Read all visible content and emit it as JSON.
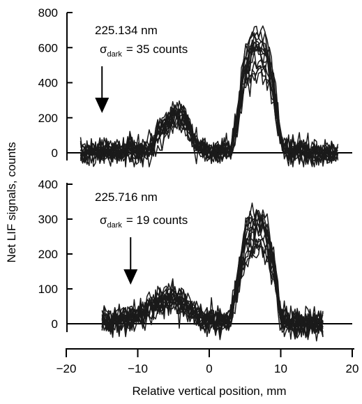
{
  "chart_data": [
    {
      "type": "line",
      "panel": "top",
      "annotation": {
        "wavelength": "225.134 nm",
        "sigma_symbol": "σ",
        "sigma_sub": "dark",
        "sigma_value": "= 35 counts"
      },
      "arrow_x": -15,
      "ylim": [
        -80,
        800
      ],
      "yticks": [
        0,
        200,
        400,
        600,
        800
      ],
      "ytick_labels": [
        "0",
        "200",
        "400",
        "600",
        "800"
      ],
      "xlim": [
        -18,
        18
      ],
      "series_count": 15,
      "noise_sigma": 35,
      "profile": [
        {
          "x": -18,
          "y": 0
        },
        {
          "x": -10,
          "y": 10
        },
        {
          "x": -8,
          "y": 30
        },
        {
          "x": -7,
          "y": 110
        },
        {
          "x": -6,
          "y": 160
        },
        {
          "x": -5,
          "y": 200
        },
        {
          "x": -4,
          "y": 210
        },
        {
          "x": -3,
          "y": 150
        },
        {
          "x": -2,
          "y": 40
        },
        {
          "x": 0,
          "y": 5
        },
        {
          "x": 3,
          "y": 20
        },
        {
          "x": 4,
          "y": 200
        },
        {
          "x": 5,
          "y": 470
        },
        {
          "x": 6,
          "y": 540
        },
        {
          "x": 7,
          "y": 560
        },
        {
          "x": 8,
          "y": 520
        },
        {
          "x": 9,
          "y": 360
        },
        {
          "x": 10,
          "y": 60
        },
        {
          "x": 11,
          "y": 10
        },
        {
          "x": 18,
          "y": 0
        }
      ]
    },
    {
      "type": "line",
      "panel": "bottom",
      "annotation": {
        "wavelength": "225.716 nm",
        "sigma_symbol": "σ",
        "sigma_sub": "dark",
        "sigma_value": "= 19 counts"
      },
      "arrow_x": -11,
      "ylim": [
        -60,
        400
      ],
      "yticks": [
        0,
        100,
        200,
        300,
        400
      ],
      "ytick_labels": [
        "0",
        "100",
        "200",
        "300",
        "400"
      ],
      "xlim": [
        -15,
        16
      ],
      "series_count": 15,
      "noise_sigma": 19,
      "profile": [
        {
          "x": -15,
          "y": 5
        },
        {
          "x": -12,
          "y": 10
        },
        {
          "x": -10,
          "y": 20
        },
        {
          "x": -8,
          "y": 50
        },
        {
          "x": -6,
          "y": 70
        },
        {
          "x": -5,
          "y": 75
        },
        {
          "x": -4,
          "y": 60
        },
        {
          "x": -2,
          "y": 25
        },
        {
          "x": 0,
          "y": 10
        },
        {
          "x": 3,
          "y": 15
        },
        {
          "x": 4,
          "y": 120
        },
        {
          "x": 5,
          "y": 230
        },
        {
          "x": 6,
          "y": 260
        },
        {
          "x": 7,
          "y": 265
        },
        {
          "x": 8,
          "y": 250
        },
        {
          "x": 9,
          "y": 160
        },
        {
          "x": 10,
          "y": 20
        },
        {
          "x": 11,
          "y": 5
        },
        {
          "x": 16,
          "y": 0
        }
      ]
    }
  ],
  "x_axis": {
    "xlabel": "Relative vertical position, mm",
    "xlim": [
      -20,
      20
    ],
    "xticks": [
      -20,
      -10,
      0,
      10,
      20
    ],
    "xtick_labels": [
      "−20",
      "−10",
      "0",
      "10",
      "20"
    ]
  },
  "ylabel": "Net LIF signals, counts",
  "colors": {
    "line": "#1a1a1a",
    "axis": "#000000",
    "background": "#ffffff"
  }
}
